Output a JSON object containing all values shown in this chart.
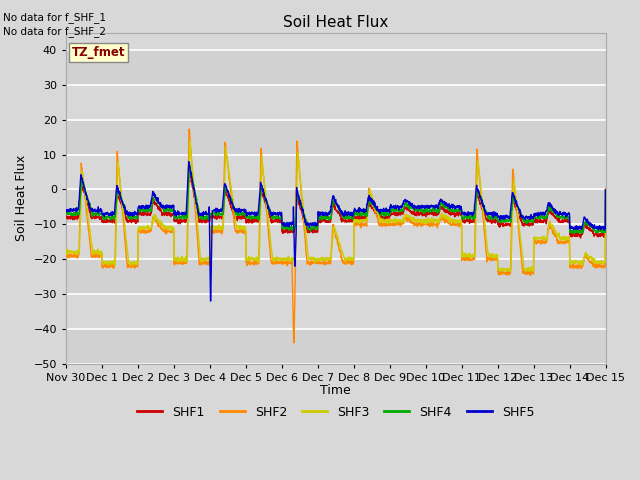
{
  "title": "Soil Heat Flux",
  "ylabel": "Soil Heat Flux",
  "xlabel": "Time",
  "ylim": [
    -50,
    45
  ],
  "yticks": [
    -50,
    -40,
    -30,
    -20,
    -10,
    0,
    10,
    20,
    30,
    40
  ],
  "bg_color": "#d8d8d8",
  "grid_color": "#ffffff",
  "annotations": [
    "No data for f_SHF_1",
    "No data for f_SHF_2"
  ],
  "box_label": "TZ_fmet",
  "legend_entries": [
    "SHF1",
    "SHF2",
    "SHF3",
    "SHF4",
    "SHF5"
  ],
  "line_colors": {
    "SHF1": "#cc0000",
    "SHF2": "#ff8800",
    "SHF3": "#cccc00",
    "SHF4": "#00aa00",
    "SHF5": "#0000cc"
  },
  "xtick_labels": [
    "Nov 30",
    "Dec 1",
    "Dec 2",
    "Dec 3",
    "Dec 4",
    "Dec 5",
    "Dec 6",
    "Dec 7",
    "Dec 8",
    "Dec 9",
    "Dec 10",
    "Dec 11",
    "Dec 12",
    "Dec 13",
    "Dec 14",
    "Dec 15"
  ]
}
